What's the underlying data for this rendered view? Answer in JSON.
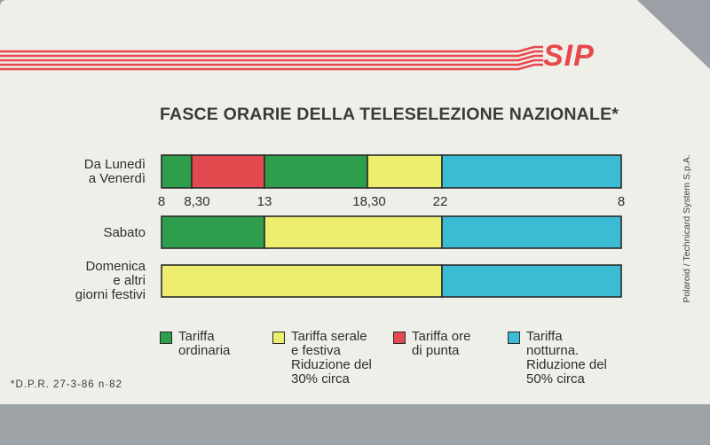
{
  "brand": "SIP",
  "title": "FASCE ORARIE DELLA TELESELEZIONE NAZIONALE*",
  "footnote": "*D.P.R. 27-3-86 n·82",
  "side_text": "Polaroid / Technicard System S.p.A.",
  "colors": {
    "tariffa_ordinaria": "#2e9e4d",
    "tariffa_serale_festiva": "#eded6e",
    "tariffa_ore_di_punta": "#e24a4f",
    "tariffa_notturna": "#3cbcd4",
    "stripe": "#e8474b"
  },
  "chart_data": {
    "type": "bar",
    "title": "FASCE ORARIE DELLA TELESELEZIONE NAZIONALE*",
    "xlabel": "",
    "ylabel": "",
    "x_ticks": [
      "8",
      "8,30",
      "13",
      "18,30",
      "22",
      "8"
    ],
    "rows": [
      {
        "label_lines": [
          "Da Lunedì",
          "a Venerdì"
        ],
        "segments": [
          {
            "from": 8.0,
            "to": 8.5,
            "tariff": "tariffa_ordinaria"
          },
          {
            "from": 8.5,
            "to": 13.0,
            "tariff": "tariffa_ore_di_punta"
          },
          {
            "from": 13.0,
            "to": 18.5,
            "tariff": "tariffa_ordinaria"
          },
          {
            "from": 18.5,
            "to": 22.0,
            "tariff": "tariffa_serale_festiva"
          },
          {
            "from": 22.0,
            "to": 32.0,
            "tariff": "tariffa_notturna"
          }
        ]
      },
      {
        "label_lines": [
          "Sabato"
        ],
        "segments": [
          {
            "from": 8.0,
            "to": 13.0,
            "tariff": "tariffa_ordinaria"
          },
          {
            "from": 13.0,
            "to": 22.0,
            "tariff": "tariffa_serale_festiva"
          },
          {
            "from": 22.0,
            "to": 32.0,
            "tariff": "tariffa_notturna"
          }
        ]
      },
      {
        "label_lines": [
          "Domenica",
          "e altri",
          "giorni festivi"
        ],
        "segments": [
          {
            "from": 8.0,
            "to": 22.0,
            "tariff": "tariffa_serale_festiva"
          },
          {
            "from": 22.0,
            "to": 32.0,
            "tariff": "tariffa_notturna"
          }
        ]
      }
    ],
    "legend": [
      {
        "key": "tariffa_ordinaria",
        "lines": [
          "Tariffa",
          "ordinaria"
        ]
      },
      {
        "key": "tariffa_serale_festiva",
        "lines": [
          "Tariffa serale",
          "e festiva",
          "Riduzione del",
          "30% circa"
        ]
      },
      {
        "key": "tariffa_ore_di_punta",
        "lines": [
          "Tariffa ore",
          "di punta"
        ]
      },
      {
        "key": "tariffa_notturna",
        "lines": [
          "Tariffa",
          "notturna.",
          "Riduzione del",
          "50% circa"
        ]
      }
    ]
  }
}
